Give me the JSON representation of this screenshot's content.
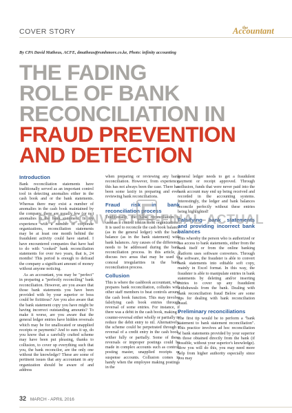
{
  "header": {
    "section": "COVER STORY",
    "masthead_the": "the",
    "masthead_name": "Accountant"
  },
  "byline": "By CPA David Matheus, ACFE, dmatheus@rsmhmore.co.ke, Photo: infinity accounting",
  "headline": {
    "grey_lines": [
      "THE FADING",
      "ROLE OF BANK",
      "RECONCILIATION IN"
    ],
    "red_lines": [
      "FRAUD PREVENTION",
      "AND DETECTION"
    ],
    "colors": {
      "grey": "#a8a6a2",
      "red": "#d33c27"
    }
  },
  "article": {
    "col1": {
      "intro_heading": "Introduction",
      "p1": "Bank reconciliation statements have traditionally served as an important control tool in detecting anomalies either in the cash book and or the bank statements. Whereas there may exist a number of anomalies in the cash book maintained by the company, there are usually few (or no) anomalies in the bank statement. In my experience with a number of corporate organizations, reconciliation statements may be at least one month behind the fraudulent activity could have started. I have encountered companies that have had to do with \"cooked\" bank reconciliation statements for over two years, that is, 24 months! This period is enough to defraud the company a significant amount of money without anyone noticing.",
      "p2": "As an accountant, you may be \"perfect\" in preparing a \"perfectly reconciling\" bank reconciliation. However, are you aware that those bank statements you have been provided with by your superior or boss could be fictitious? Are you also aware that the bank statement copy you have might be having incorrect outstanding amounts? To make it worse, are you aware that the general ledger entries have hidden reversals which may be for unallocated or unapplied receipts or payments? And to sum it up, do you know that a carefully crafted scheme may have been put pleasing, thanks to collusion, to cover up everything such that you, the bank reconcilor, are the only one without the knowledge? These are some of pertinent issues that any accountant in any organization should be aware of and address"
    },
    "col2": {
      "p1": "when preparing or reviewing any bank reconciliation. However, from experience, this has not always been the case. There has been some laxity in preparing and even reviewing bank reconciliations.",
      "h1": "Fraud risk in bank reconciliation process",
      "p2": "Traditionally, the bank reconciliation is used as a control tool in most organizations. It is used to reconcile the cash book balance (as in the general ledger) with the bank balance (as in the bank statement) with bank balances. Any causes of the difference needs to be addressed during the bank reconciliation process. In this article, I discuss two areas that may be used to conceal irregularities in the bank reconciliation process.",
      "h2": "Collusion",
      "p3": "This is where the cashbook accountant, who prepares bank reconciliation, colludes with other staff members to beat controls around the cash book function. This may involve falsifying cash book entries through reversal of some entries. For instance, if there was a debit in the cash book, making a counter-reversal either wholly or partially to reduce the debit entry to nil. Alternatively, the scheme could be perpetrated through a reversal of a credit entry in the cash book, wither fully or partially. Some of these reversals or improper postings could be made in complex accounts such as control, posting master, unapplied receipts or suspense accounts. Collusion comes in handy when the employee making postings in the"
    },
    "col3": {
      "p1": "general ledger needs to get a fraudulent payment or receipt approved. Through collusion, funds that were never paid into the bank account may end up being received and recorded in the accounting systems. Interestingly, the ledger and bank balances reconcile perfectly without these entries being highlighted!",
      "h1": "Falsifying bank statements and providing incorrect bank balances",
      "p2": "This whereby the person who is authorized or has access to bank statements, either from the bank itself or from the online banking platform uses software converters. Through the software, the fraudster is able to convert bank statements into editable soft copy, mainly in Excel format. In this way, the fraudster is able to manipulate entries in bank statements by deleting and/or inserting entries to cover up any fraudulent withdrawals from the bank. Dealing with bank reconciliation fraud Below are some tips for dealing with bank reconciliation fraud.",
      "h2": "Preliminary reconciliations",
      "p3": "The first tip would be to perform a \"bank statement to bank statement reconciliation\". This practice involves ad hoc reconciliation of bank statements provided by your superior to those obtained directly from the bank (if possible, without your superior's knowledge). How you will do this, you may need more help from higher authority especially since you may"
    }
  },
  "watermark": "PDF.CONVERTER-FINAL-ACTUAL",
  "footer": {
    "page_number": "32",
    "issue": "MARCH - APRIL 2016"
  }
}
